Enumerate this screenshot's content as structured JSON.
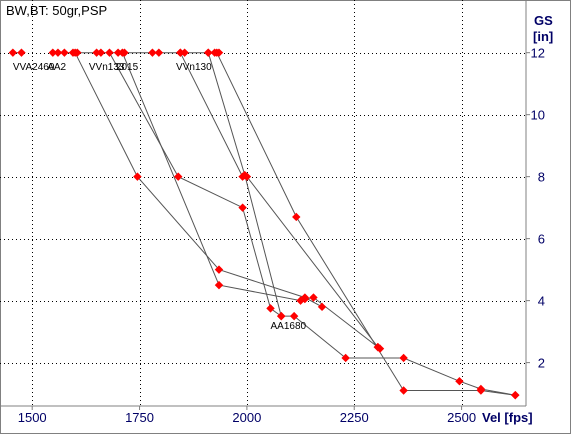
{
  "chart_data": {
    "type": "scatter",
    "title": "BW,BT:  50gr,PSP",
    "xlabel": "Vel [fps]",
    "ylabel_line1": "GS",
    "ylabel_line2": "[in]",
    "xlim": [
      1425,
      2650
    ],
    "ylim": [
      0.6,
      13.7
    ],
    "xticks": [
      {
        "value": 1500,
        "label": "1500"
      },
      {
        "value": 1750,
        "label": "1750"
      },
      {
        "value": 2000,
        "label": "2000"
      },
      {
        "value": 2250,
        "label": "2250"
      },
      {
        "value": 2500,
        "label": "2500"
      }
    ],
    "yticks": [
      {
        "value": 2,
        "label": "2"
      },
      {
        "value": 4,
        "label": "4"
      },
      {
        "value": 6,
        "label": "6"
      },
      {
        "value": 8,
        "label": "8"
      },
      {
        "value": 10,
        "label": "10"
      },
      {
        "value": 12,
        "label": "12"
      }
    ],
    "grid": true,
    "colors": {
      "point": "#ff0000",
      "line": "#555555",
      "axis_text": "#000066",
      "grid": "#000000"
    },
    "labels": [
      {
        "text": "VVA2460",
        "x": 1455,
        "y": 11.7
      },
      {
        "text": "AA2",
        "x": 1535,
        "y": 11.7
      },
      {
        "text": "VVn133",
        "x": 1632,
        "y": 11.7
      },
      {
        "text": "2015",
        "x": 1695,
        "y": 11.7
      },
      {
        "text": "VVn130",
        "x": 1835,
        "y": 11.7
      },
      {
        "text": "AA1680",
        "x": 2055,
        "y": 3.35
      }
    ],
    "series": [
      {
        "points": [
          [
            1455,
            12
          ],
          [
            1475,
            12
          ]
        ]
      },
      {
        "points": [
          [
            1548,
            12
          ],
          [
            1560,
            12
          ],
          [
            1575,
            12
          ],
          [
            1595,
            12
          ],
          [
            1605,
            12
          ],
          [
            1650,
            12
          ],
          [
            1660,
            12
          ],
          [
            1700,
            12
          ],
          [
            1715,
            12
          ],
          [
            1780,
            12
          ],
          [
            1795,
            12
          ],
          [
            1845,
            12
          ],
          [
            1855,
            12
          ],
          [
            1910,
            12
          ],
          [
            1925,
            12
          ],
          [
            1935,
            12
          ]
        ]
      },
      {
        "points": [
          [
            1600,
            12
          ],
          [
            1745,
            8
          ],
          [
            1935,
            5
          ],
          [
            2135,
            4.1
          ],
          [
            2175,
            3.8
          ]
        ]
      },
      {
        "points": [
          [
            1680,
            12
          ],
          [
            1840,
            8
          ],
          [
            1990,
            7
          ],
          [
            2055,
            3.75
          ],
          [
            2080,
            3.5
          ]
        ]
      },
      {
        "points": [
          [
            1710,
            12
          ],
          [
            1935,
            4.5
          ],
          [
            2125,
            4
          ],
          [
            2135,
            4.05
          ],
          [
            2155,
            4.1
          ],
          [
            2305,
            2.5
          ],
          [
            2310,
            2.45
          ]
        ]
      },
      {
        "points": [
          [
            1845,
            12
          ],
          [
            1990,
            8
          ],
          [
            2000,
            8
          ],
          [
            2305,
            2.5
          ]
        ]
      },
      {
        "points": [
          [
            1910,
            12
          ],
          [
            1995,
            8.05
          ],
          [
            2080,
            3.5
          ],
          [
            2110,
            3.5
          ],
          [
            2230,
            2.15
          ],
          [
            2365,
            2.15
          ],
          [
            2495,
            1.4
          ],
          [
            2545,
            1.15
          ],
          [
            2625,
            0.95
          ]
        ]
      },
      {
        "points": [
          [
            1930,
            12
          ],
          [
            2115,
            6.7
          ],
          [
            2365,
            1.1
          ],
          [
            2545,
            1.1
          ],
          [
            2625,
            0.95
          ]
        ]
      }
    ]
  }
}
